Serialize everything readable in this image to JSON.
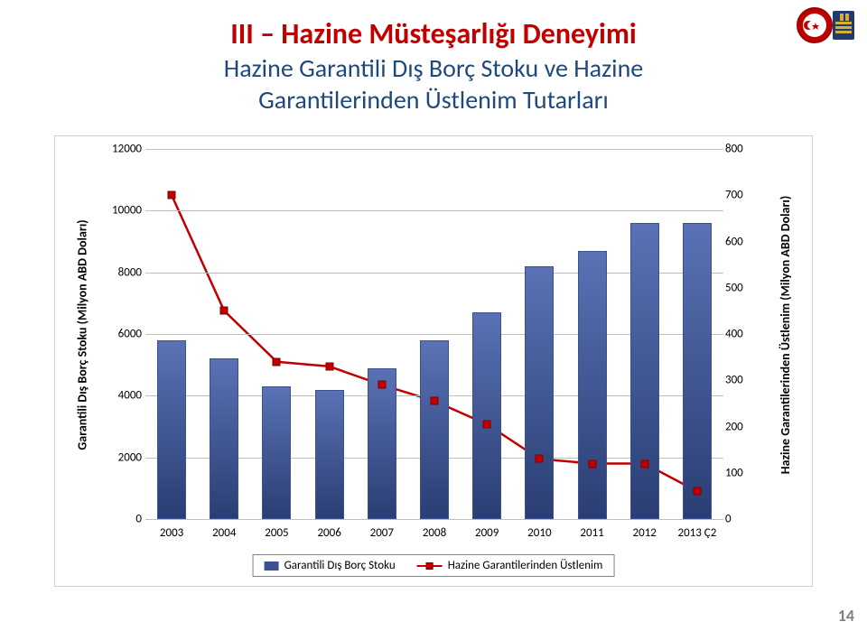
{
  "title": "III – Hazine Müsteşarlığı Deneyimi",
  "subtitle_line1": "Hazine Garantili Dış Borç Stoku ve Hazine",
  "subtitle_line2": "Garantilerinden Üstlenim Tutarları",
  "page_number": "14",
  "chart": {
    "type": "bar+line",
    "background_color": "#ffffff",
    "grid_color": "#bfbfbf",
    "categories": [
      "2003",
      "2004",
      "2005",
      "2006",
      "2007",
      "2008",
      "2009",
      "2010",
      "2011",
      "2012",
      "2013 Ç2"
    ],
    "bars": {
      "label": "Garantili Dış Borç Stoku",
      "color": "#3b5190",
      "values": [
        5800,
        5200,
        4300,
        4200,
        4900,
        5800,
        6700,
        8200,
        8700,
        9600,
        9600
      ],
      "bar_width": 0.55
    },
    "line": {
      "label": "Hazine Garantilerinden Üstlenim",
      "color": "#c00000",
      "marker": "square",
      "marker_size": 9,
      "line_width": 2.5,
      "values": [
        700,
        450,
        340,
        330,
        290,
        255,
        205,
        130,
        120,
        120,
        60
      ]
    },
    "y_left": {
      "label": "Garantili Dış Borç Stoku (Milyon ABD Doları)",
      "min": 0,
      "max": 12000,
      "step": 2000,
      "fontsize": 13,
      "label_fontsize": 14
    },
    "y_right": {
      "label": "Hazine Garantilerinden Üstlenim (Milyon ABD Doları)",
      "min": 0,
      "max": 800,
      "step": 100,
      "fontsize": 13,
      "label_fontsize": 14
    },
    "x_fontsize": 13,
    "legend_fontsize": 13
  },
  "colors": {
    "title": "#c00000",
    "subtitle": "#1f497d"
  }
}
